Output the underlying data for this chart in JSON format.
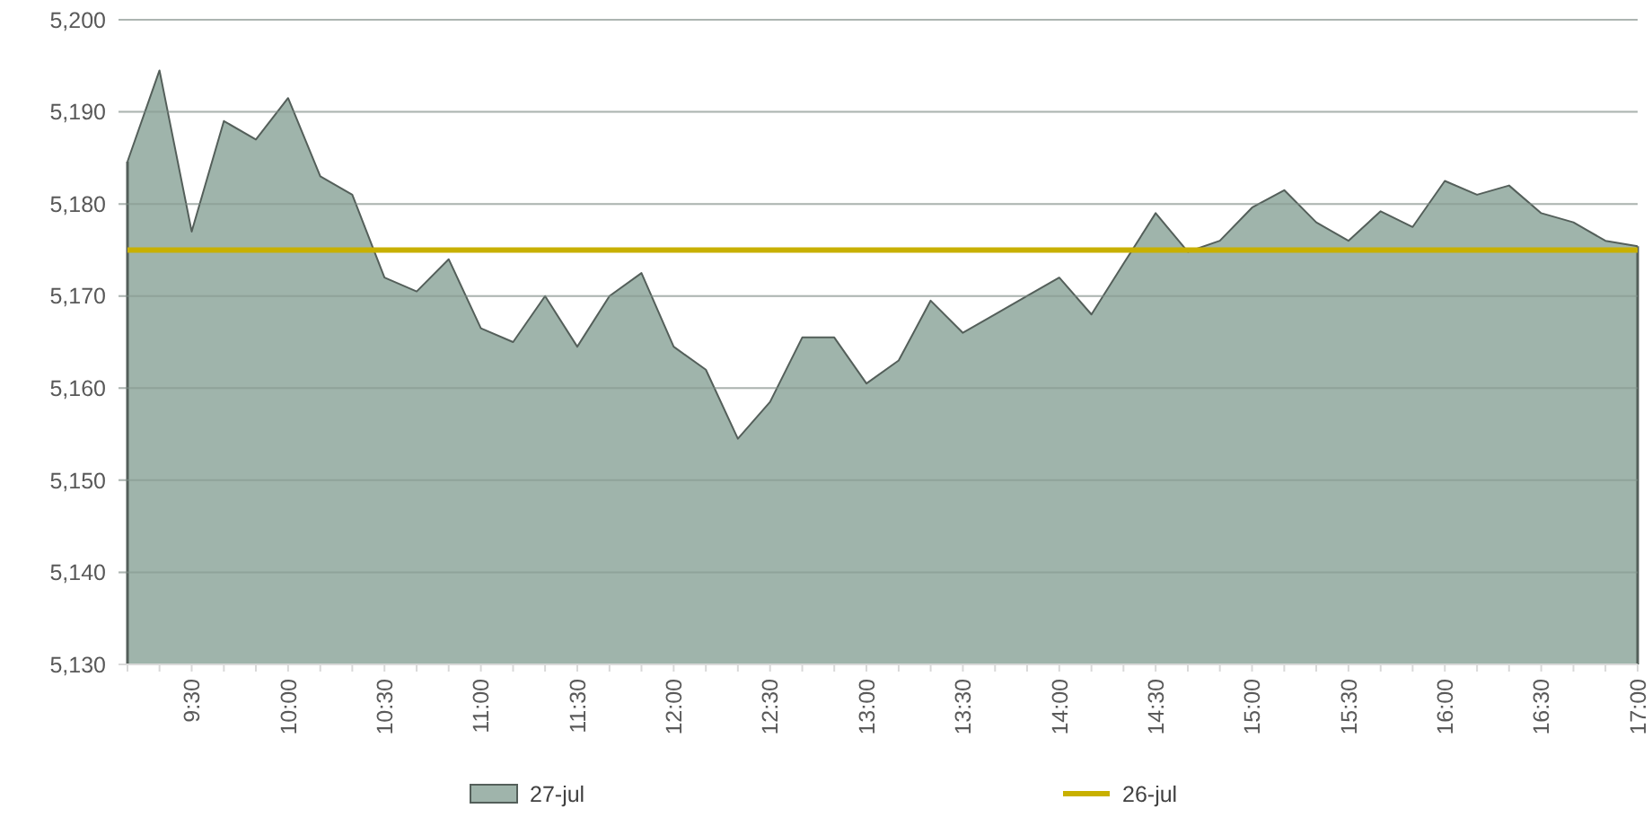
{
  "chart_data": {
    "type": "area",
    "x": [
      9.167,
      9.333,
      9.5,
      9.667,
      9.833,
      10,
      10.167,
      10.333,
      10.5,
      10.667,
      10.833,
      11,
      11.167,
      11.333,
      11.5,
      11.667,
      11.833,
      12,
      12.167,
      12.333,
      12.5,
      12.667,
      12.833,
      13,
      13.167,
      13.333,
      13.5,
      13.667,
      13.833,
      14,
      14.167,
      14.333,
      14.5,
      14.667,
      14.833,
      15,
      15.167,
      15.333,
      15.5,
      15.667,
      15.833,
      16,
      16.167,
      16.333,
      16.5,
      16.667,
      16.833,
      17
    ],
    "series": [
      {
        "name": "27-jul",
        "color": "#9fb4ab",
        "values": [
          5184.6,
          5194.5,
          5177,
          5189,
          5187,
          5191.5,
          5183,
          5181,
          5172,
          5170.5,
          5174,
          5166.5,
          5165,
          5170,
          5164.5,
          5170,
          5172.5,
          5164.5,
          5162,
          5154.5,
          5158.5,
          5165.5,
          5165.5,
          5160.5,
          5163,
          5169.5,
          5166,
          5168,
          5170,
          5172,
          5168,
          5173.5,
          5179,
          5174.8,
          5176,
          5179.6,
          5181.5,
          5178,
          5176,
          5179.2,
          5177.5,
          5182.5,
          5181,
          5182,
          5179,
          5178,
          5176,
          5175.4
        ]
      }
    ],
    "ref_lines": [
      {
        "axis": "y",
        "value": 5175,
        "label": "26-jul",
        "color": "#c8b000"
      }
    ],
    "xlim": [
      9.167,
      17
    ],
    "xticks": [
      {
        "value": 9.5,
        "label": "9:30"
      },
      {
        "value": 10,
        "label": "10:00"
      },
      {
        "value": 10.5,
        "label": "10:30"
      },
      {
        "value": 11,
        "label": "11:00"
      },
      {
        "value": 11.5,
        "label": "11:30"
      },
      {
        "value": 12,
        "label": "12:00"
      },
      {
        "value": 12.5,
        "label": "12:30"
      },
      {
        "value": 13,
        "label": "13:00"
      },
      {
        "value": 13.5,
        "label": "13:30"
      },
      {
        "value": 14,
        "label": "14:00"
      },
      {
        "value": 14.5,
        "label": "14:30"
      },
      {
        "value": 15,
        "label": "15:00"
      },
      {
        "value": 15.5,
        "label": "15:30"
      },
      {
        "value": 16,
        "label": "16:00"
      },
      {
        "value": 16.5,
        "label": "16:30"
      },
      {
        "value": 17,
        "label": "17:00"
      }
    ],
    "ylim": [
      5130,
      5200
    ],
    "yticks": [
      {
        "value": 5130,
        "label": "5,130"
      },
      {
        "value": 5140,
        "label": "5,140"
      },
      {
        "value": 5150,
        "label": "5,150"
      },
      {
        "value": 5160,
        "label": "5,160"
      },
      {
        "value": 5170,
        "label": "5,170"
      },
      {
        "value": 5180,
        "label": "5,180"
      },
      {
        "value": 5190,
        "label": "5,190"
      },
      {
        "value": 5200,
        "label": "5,200"
      }
    ],
    "grid": "y",
    "legend": "bottom"
  }
}
